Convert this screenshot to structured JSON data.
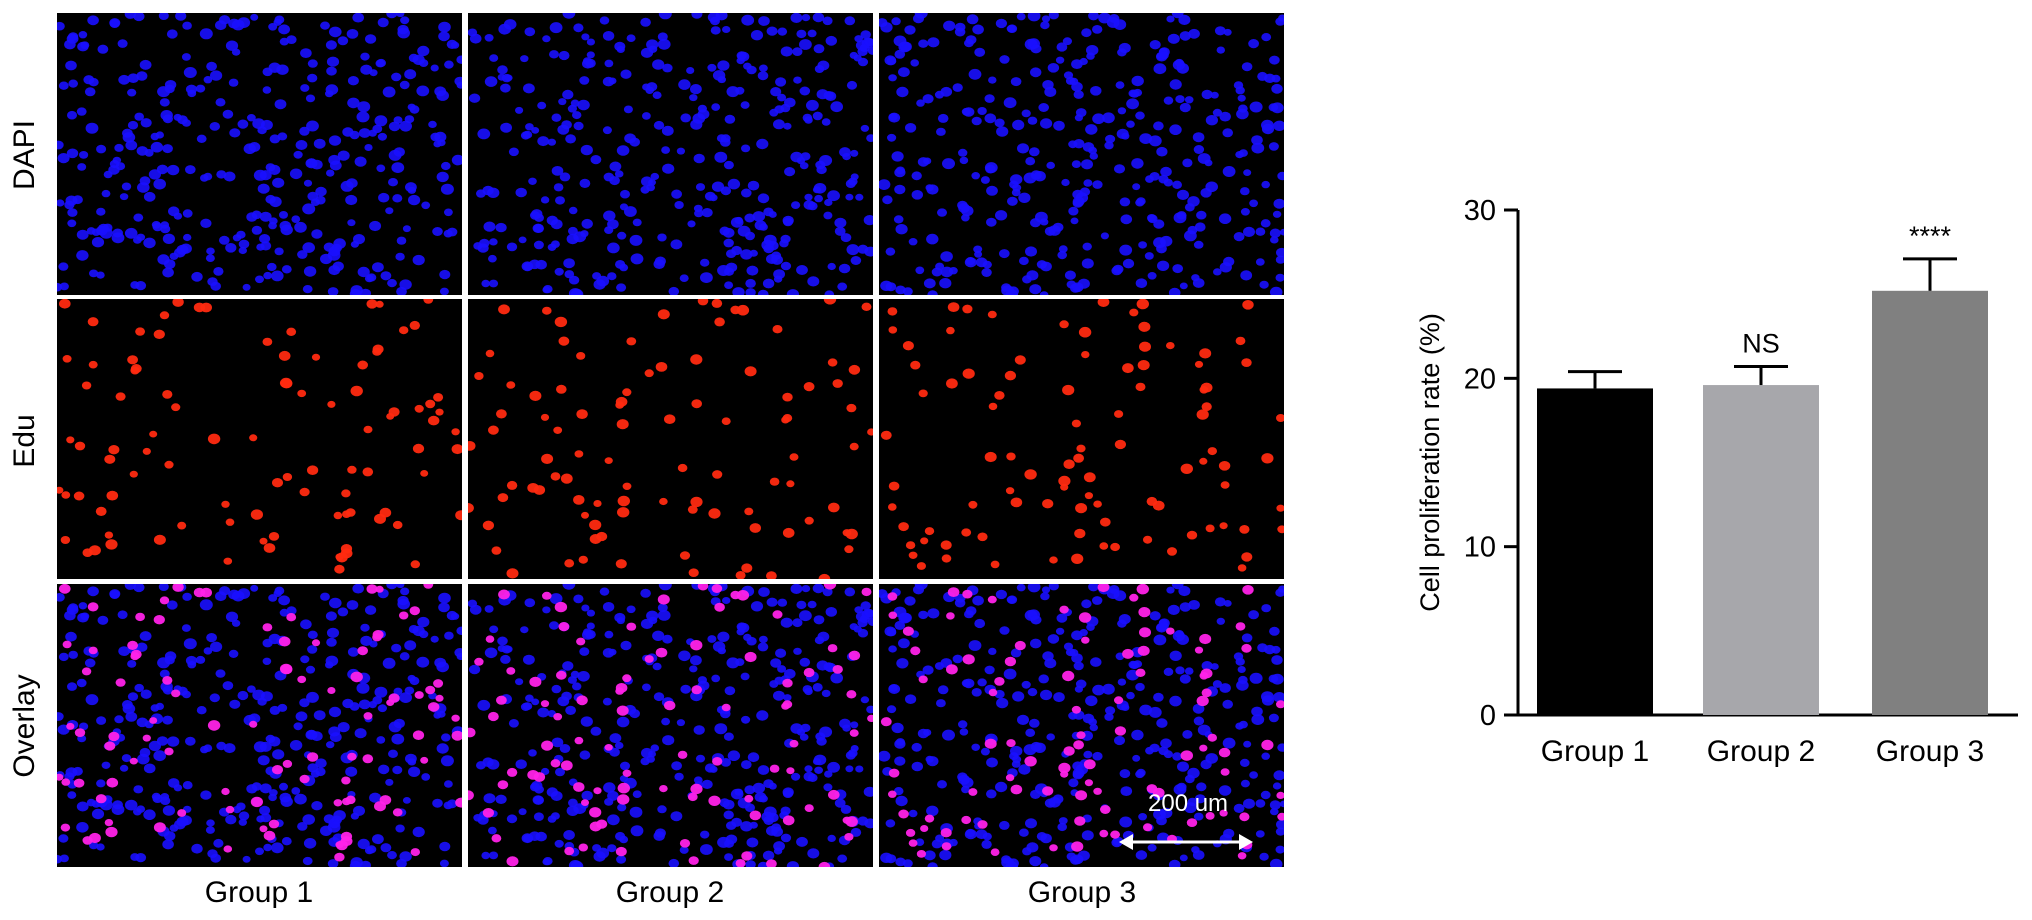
{
  "figure": {
    "row_labels": [
      "DAPI",
      "Edu",
      "Overlay"
    ],
    "column_labels": [
      "Group 1",
      "Group 2",
      "Group 3"
    ],
    "scale_bar_label": "200 um",
    "colors": {
      "dapi": "#1a10ff",
      "edu": "#ff2a10",
      "overlay_merge": "#ff22e8",
      "panel_background": "#000000"
    }
  },
  "chart_data": {
    "type": "bar",
    "categories": [
      "Group 1",
      "Group 2",
      "Group 3"
    ],
    "values": [
      19.4,
      19.6,
      25.2
    ],
    "errors": [
      1.0,
      1.1,
      1.9
    ],
    "significance": [
      "",
      "NS",
      "****"
    ],
    "bar_colors": [
      "#000000",
      "#a7a7ab",
      "#808080"
    ],
    "ylabel": "Cell proliferation rate (%)",
    "ylim": [
      0,
      30
    ],
    "yticks": [
      0,
      10,
      20,
      30
    ]
  }
}
